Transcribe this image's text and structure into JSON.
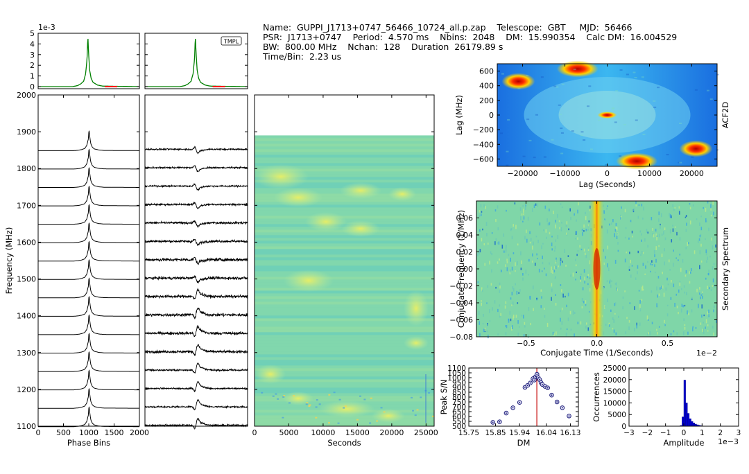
{
  "header": {
    "name_label": "Name:",
    "name_value": "GUPPI_J1713+0747_56466_10724_all.p.zap",
    "telescope_label": "Telescope:",
    "telescope_value": "GBT",
    "mjd_label": "MJD:",
    "mjd_value": "56466",
    "psr_label": "PSR:",
    "psr_value": "J1713+0747",
    "period_label": "Period:",
    "period_value": "4.570 ms",
    "nbins_label": "Nbins:",
    "nbins_value": "2048",
    "dm_label": "DM:",
    "dm_value": "15.990354",
    "calcdm_label": "Calc DM:",
    "calcdm_value": "16.004529",
    "bw_label": "BW:",
    "bw_value": "800.00 MHz",
    "nchan_label": "Nchan:",
    "nchan_value": "128",
    "duration_label": "Duration",
    "duration_value": "26179.89 s",
    "timebin_label": "Time/Bin:",
    "timebin_value": "2.23 us"
  },
  "colors": {
    "profile": "#008000",
    "template": "#008000",
    "offpulse": "#ff0000",
    "trace": "#000000",
    "dm_line": "#cc2222",
    "dm_marker": "#1f1f7a",
    "hist": "#0000cc"
  },
  "chart_data": [
    {
      "id": "avg-profile",
      "type": "line",
      "x": [
        0,
        700,
        800,
        860,
        920,
        960,
        990,
        1005,
        1020,
        1040,
        1070,
        1110,
        1200,
        1300,
        2048
      ],
      "y": [
        0.0,
        0.0,
        0.1,
        0.25,
        0.5,
        1.2,
        2.6,
        4.8,
        3.2,
        1.6,
        0.8,
        0.4,
        0.15,
        0.05,
        0.0
      ],
      "ylim": [
        0,
        5
      ],
      "yticks": [
        "0",
        "1",
        "2",
        "3",
        "4",
        "5"
      ],
      "yscale_label": "1e-3",
      "offpulse_range": [
        1350,
        1600
      ]
    },
    {
      "id": "template-profile",
      "type": "line",
      "x": [
        0,
        700,
        800,
        860,
        920,
        960,
        990,
        1005,
        1020,
        1040,
        1070,
        1110,
        1200,
        1300,
        2048
      ],
      "y": [
        0.0,
        0.0,
        0.1,
        0.25,
        0.5,
        1.2,
        2.6,
        4.8,
        3.2,
        1.6,
        0.8,
        0.4,
        0.15,
        0.05,
        0.0
      ],
      "ylim": [
        0,
        5
      ],
      "legend": "TMPL",
      "legend_position": "top-right",
      "offpulse_range": [
        1350,
        1600
      ]
    },
    {
      "id": "freq-profiles",
      "type": "line",
      "xlim": [
        0,
        2000
      ],
      "xticks": [
        "0",
        "500",
        "1000",
        "1500",
        "2000"
      ],
      "xlabel": "Phase Bins",
      "ylim": [
        1100,
        2000
      ],
      "yticks": [
        "1100",
        "1200",
        "1300",
        "1400",
        "1500",
        "1600",
        "1700",
        "1800",
        "1900",
        "2000"
      ],
      "ylabel": "Frequency (MHz)",
      "channel_baselines": [
        1125,
        1175,
        1225,
        1275,
        1325,
        1375,
        1425,
        1475,
        1525,
        1575,
        1625,
        1675,
        1725,
        1775,
        1825,
        1875
      ]
    },
    {
      "id": "residual-profiles",
      "type": "line",
      "xlim": [
        0,
        2000
      ],
      "ylim": [
        1100,
        2000
      ],
      "noise_level": [
        0.3,
        0.3,
        0.3,
        0.35,
        0.5,
        0.55,
        0.6,
        0.55,
        0.55,
        0.6,
        0.45,
        0.4,
        0.35,
        0.3,
        0.3,
        0.3
      ]
    },
    {
      "id": "dynamic-spectrum",
      "type": "heatmap",
      "xlim": [
        0,
        26180
      ],
      "xticks": [
        "0",
        "5000",
        "10000",
        "15000",
        "20000",
        "25000"
      ],
      "xlabel": "Seconds",
      "ylim": [
        1100,
        2000
      ],
      "data_top_freq": 1890
    },
    {
      "id": "acf2d",
      "type": "heatmap",
      "xlim": [
        -26000,
        26000
      ],
      "xticks": [
        "−20000",
        "−10000",
        "0",
        "10000",
        "20000"
      ],
      "xlabel": "Lag (Seconds)",
      "ylim": [
        -700,
        700
      ],
      "yticks": [
        "600",
        "400",
        "200",
        "0",
        "−200",
        "−400",
        "−600"
      ],
      "ylabel": "Lag (MHz)",
      "side_label": "ACF2D"
    },
    {
      "id": "secondary-spectrum",
      "type": "heatmap",
      "xlim": [
        -0.85,
        0.85
      ],
      "xticks": [
        "−0.5",
        "0.0",
        "0.5"
      ],
      "xlabel": "Conjugate Time (1/Seconds)",
      "xscale_label": "1e−2",
      "ylim": [
        -0.08,
        0.08
      ],
      "yticks": [
        "0.06",
        "0.04",
        "0.02",
        "0.00",
        "−0.02",
        "−0.04",
        "−0.06",
        "−0.08"
      ],
      "ylabel": "Conjugate Frequency (1/MHz)",
      "side_label": "Secondary Spectrum"
    },
    {
      "id": "dm-search",
      "type": "scatter",
      "x": [
        15.84,
        15.865,
        15.89,
        15.915,
        15.94,
        15.96,
        15.97,
        15.98,
        15.99,
        15.995,
        16.0,
        16.005,
        16.01,
        16.015,
        16.02,
        16.025,
        16.035,
        16.045,
        16.06,
        16.08,
        16.1,
        16.125
      ],
      "y": [
        540,
        545,
        635,
        690,
        745,
        900,
        920,
        945,
        990,
        975,
        1010,
        1035,
        1000,
        980,
        950,
        930,
        910,
        895,
        820,
        750,
        690,
        605
      ],
      "xlim": [
        15.75,
        16.16
      ],
      "xticks": [
        "15.75",
        "15.85",
        "15.94",
        "16.04",
        "16.13"
      ],
      "xlabel": "DM",
      "ylim": [
        500,
        1100
      ],
      "yticks": [
        "500",
        "550",
        "600",
        "650",
        "700",
        "750",
        "800",
        "850",
        "900",
        "950",
        "1000",
        "1050",
        "1100"
      ],
      "ylabel": "Peak S/N",
      "vline": 16.004529
    },
    {
      "id": "amplitude-histogram",
      "type": "bar",
      "bin_edges": [
        -0.2,
        -0.1,
        0.0,
        0.1,
        0.2,
        0.3,
        0.4,
        0.5,
        0.6,
        0.7,
        0.8,
        0.9,
        1.0
      ],
      "values": [
        300,
        4000,
        19800,
        10000,
        5500,
        3200,
        2000,
        1400,
        900,
        600,
        400,
        200
      ],
      "xlim": [
        -3,
        3
      ],
      "xticks": [
        "−3",
        "−2",
        "−1",
        "0",
        "1",
        "2",
        "3"
      ],
      "xlabel": "Amplitude",
      "xscale_label": "1e−3",
      "ylim": [
        0,
        25000
      ],
      "yticks": [
        "0",
        "5000",
        "10000",
        "15000",
        "20000",
        "25000"
      ],
      "ylabel": "Occurrences"
    }
  ]
}
